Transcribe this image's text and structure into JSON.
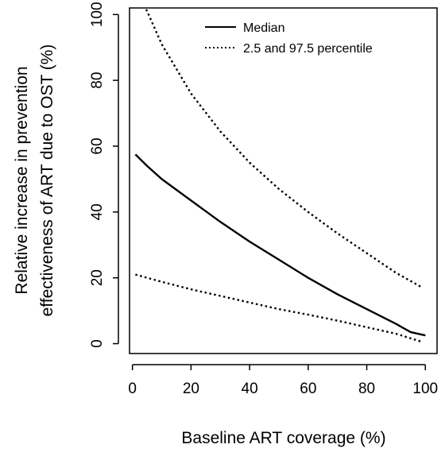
{
  "chart_data": {
    "type": "line",
    "xlabel": "Baseline ART coverage (%)",
    "ylabel": [
      "Relative increase in prevention",
      "effectiveness of ART due to OST (%)"
    ],
    "xlim": [
      -1,
      104
    ],
    "ylim": [
      -3,
      102
    ],
    "x_ticks": [
      0,
      20,
      40,
      60,
      80,
      100
    ],
    "y_ticks": [
      0,
      20,
      40,
      60,
      80,
      100
    ],
    "grid": false,
    "legend_position": "top-center",
    "series": [
      {
        "name": "Median",
        "style": "solid",
        "x": [
          1,
          5,
          10,
          20,
          30,
          40,
          50,
          60,
          70,
          80,
          90,
          95,
          100
        ],
        "y": [
          57.5,
          54,
          50,
          43.5,
          37,
          31,
          25.5,
          20,
          15,
          10.5,
          6,
          3.5,
          2.5
        ]
      },
      {
        "name": "2.5 and 97.5 percentile",
        "style": "dotted",
        "x": [
          1,
          5,
          10,
          20,
          30,
          40,
          50,
          60,
          70,
          80,
          90,
          99
        ],
        "y": [
          21,
          20,
          18.8,
          16.5,
          14.5,
          12.5,
          10.5,
          8.8,
          7,
          5,
          3,
          0.5
        ]
      },
      {
        "name": "2.5 and 97.5 percentile",
        "style": "dotted",
        "legend": false,
        "x": [
          1,
          5,
          10,
          20,
          30,
          40,
          50,
          60,
          70,
          80,
          90,
          99
        ],
        "y": [
          108,
          101,
          91,
          76,
          64.5,
          55,
          47,
          40,
          33.5,
          27.5,
          21.5,
          17
        ]
      }
    ]
  }
}
